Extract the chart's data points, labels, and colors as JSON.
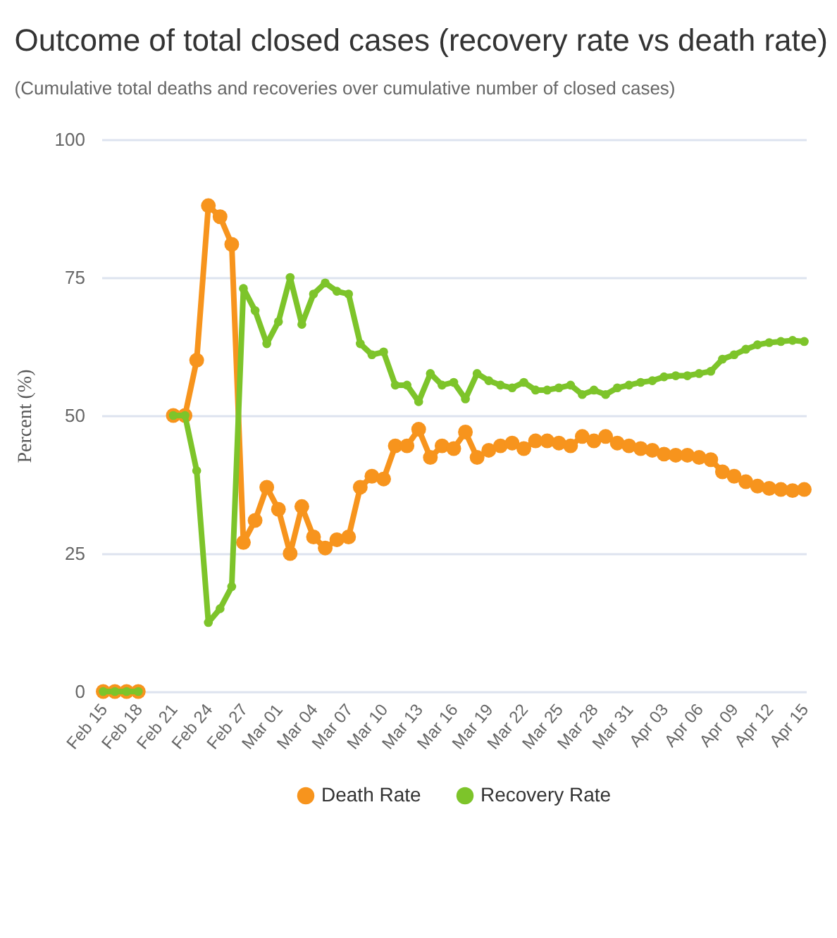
{
  "chart_data": {
    "type": "line",
    "title": "Outcome of total closed cases (recovery rate vs death rate)",
    "subtitle": "(Cumulative total deaths and recoveries over cumulative number of closed cases)",
    "ylabel": "Percent (%)",
    "categories": [
      "Feb 15",
      null,
      null,
      "Feb 18",
      null,
      null,
      "Feb 21",
      null,
      null,
      "Feb 24",
      null,
      null,
      "Feb 27",
      null,
      null,
      "Mar 01",
      null,
      null,
      "Mar 04",
      null,
      null,
      "Mar 07",
      null,
      null,
      "Mar 10",
      null,
      null,
      "Mar 13",
      null,
      null,
      "Mar 16",
      null,
      null,
      "Mar 19",
      null,
      null,
      "Mar 22",
      null,
      null,
      "Mar 25",
      null,
      null,
      "Mar 28",
      null,
      null,
      "Mar 31",
      null,
      null,
      "Apr 03",
      null,
      null,
      "Apr 06",
      null,
      null,
      "Apr 09",
      null,
      null,
      "Apr 12",
      null,
      null,
      "Apr 15"
    ],
    "series": [
      {
        "name": "Death Rate",
        "color": "#f7941d",
        "values": [
          0,
          0,
          0,
          0,
          null,
          null,
          50,
          50,
          60,
          88,
          86,
          81,
          27,
          31,
          37,
          33,
          25,
          33.5,
          28,
          26,
          27.5,
          28,
          37,
          39,
          38.5,
          44.5,
          44.5,
          47.5,
          42.4,
          44.5,
          44,
          47,
          42.4,
          43.7,
          44.5,
          45,
          44,
          45.4,
          45.4,
          45,
          44.5,
          46.2,
          45.4,
          46.2,
          45,
          44.5,
          44,
          43.7,
          43,
          42.8,
          42.8,
          42.4,
          42,
          39.8,
          39,
          38,
          37.2,
          36.8,
          36.6,
          36.4,
          36.6
        ]
      },
      {
        "name": "Recovery Rate",
        "color": "#7dc42a",
        "values": [
          0,
          0,
          0,
          0,
          null,
          null,
          50,
          50,
          40,
          12.5,
          15,
          19,
          73,
          69,
          63,
          67,
          75,
          66.5,
          72,
          74,
          72.5,
          72,
          63,
          61,
          61.5,
          55.5,
          55.5,
          52.5,
          57.6,
          55.5,
          56,
          53,
          57.6,
          56.3,
          55.5,
          55,
          56,
          54.6,
          54.6,
          55,
          55.5,
          53.8,
          54.6,
          53.8,
          55,
          55.5,
          56,
          56.3,
          57,
          57.2,
          57.2,
          57.6,
          58,
          60.2,
          61,
          62,
          62.8,
          63.2,
          63.4,
          63.6,
          63.4
        ]
      }
    ],
    "ylim": [
      0,
      100
    ],
    "yticks": [
      0,
      25,
      50,
      75,
      100
    ],
    "grid": "y",
    "legend": "bottom",
    "marker": "circle",
    "line_style": "solid"
  }
}
